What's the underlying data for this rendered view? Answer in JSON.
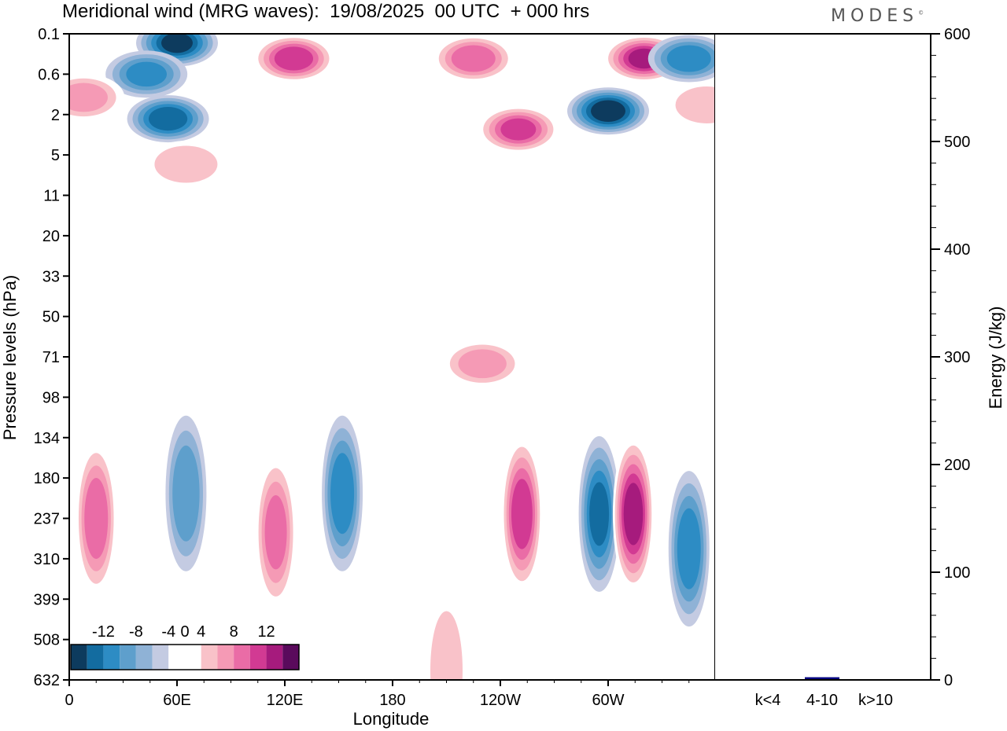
{
  "title": "Meridional wind (MRG waves):  19/08/2025  00 UTC  + 000 hrs",
  "logo_text": "MODES",
  "logo_mark": "©",
  "chart_data": [
    {
      "type": "heatmap",
      "title": "Meridional wind (MRG waves)",
      "xlabel": "Longitude",
      "ylabel": "Pressure levels (hPa)",
      "x_ticks": [
        "0",
        "60E",
        "120E",
        "180",
        "120W",
        "60W"
      ],
      "x_tick_degrees": [
        0,
        60,
        120,
        180,
        240,
        300
      ],
      "x_range": [
        0,
        360
      ],
      "y_ticks": [
        "0.1",
        "0.6",
        "2",
        "5",
        "11",
        "20",
        "33",
        "50",
        "71",
        "98",
        "134",
        "180",
        "237",
        "310",
        "399",
        "508",
        "632"
      ],
      "colorbar": {
        "labels": [
          "-12",
          "-8",
          "-4",
          "0",
          "4",
          "8",
          "12"
        ],
        "levels": [
          -14,
          -12,
          -10,
          -8,
          -6,
          -4,
          -2,
          2,
          4,
          6,
          8,
          10,
          12,
          14
        ],
        "colors": [
          "#0d3b5e",
          "#136ca0",
          "#2d8cc4",
          "#5e9fcc",
          "#8fb2d6",
          "#c4cbe2",
          "#ffffff",
          "#ffffff",
          "#f9c2c9",
          "#f59ab5",
          "#ea6ca6",
          "#d23a93",
          "#a61b7d",
          "#5a0a5c"
        ]
      },
      "features": [
        {
          "lon": 60,
          "p": 0.15,
          "v": -13
        },
        {
          "lon": 43,
          "p": 0.6,
          "v": -9
        },
        {
          "lon": 55,
          "p": 2.2,
          "v": -12
        },
        {
          "lon": 125,
          "p": 0.3,
          "v": 12
        },
        {
          "lon": 250,
          "p": 2.8,
          "v": 11
        },
        {
          "lon": 225,
          "p": 0.3,
          "v": 10
        },
        {
          "lon": 300,
          "p": 1.8,
          "v": -14
        },
        {
          "lon": 320,
          "p": 0.3,
          "v": 13
        },
        {
          "lon": 345,
          "p": 0.3,
          "v": -10
        },
        {
          "lon": 8,
          "p": 1.2,
          "v": 7
        },
        {
          "lon": 65,
          "p": 6,
          "v": 6
        },
        {
          "lon": 355,
          "p": 1.5,
          "v": 6
        },
        {
          "lon": 15,
          "p": 237,
          "v": 10
        },
        {
          "lon": 65,
          "p": 200,
          "v": -8
        },
        {
          "lon": 115,
          "p": 260,
          "v": 9
        },
        {
          "lon": 152,
          "p": 200,
          "v": -10
        },
        {
          "lon": 252,
          "p": 230,
          "v": 12
        },
        {
          "lon": 295,
          "p": 230,
          "v": -11
        },
        {
          "lon": 314,
          "p": 230,
          "v": 14
        },
        {
          "lon": 345,
          "p": 290,
          "v": -10
        },
        {
          "lon": 210,
          "p": 600,
          "v": 6
        },
        {
          "lon": 230,
          "p": 75,
          "v": 7
        }
      ]
    },
    {
      "type": "bar",
      "title": "",
      "xlabel": "",
      "ylabel": "Energy (J/kg)",
      "categories": [
        "k<4",
        "4-10",
        "k>10"
      ],
      "values": [
        0.5,
        2.5,
        0.3
      ],
      "colors": [
        "#000080",
        "#000080",
        "#000080"
      ],
      "y_ticks": [
        "0",
        "100",
        "200",
        "300",
        "400",
        "500",
        "600"
      ],
      "ylim": [
        0,
        600
      ]
    }
  ]
}
